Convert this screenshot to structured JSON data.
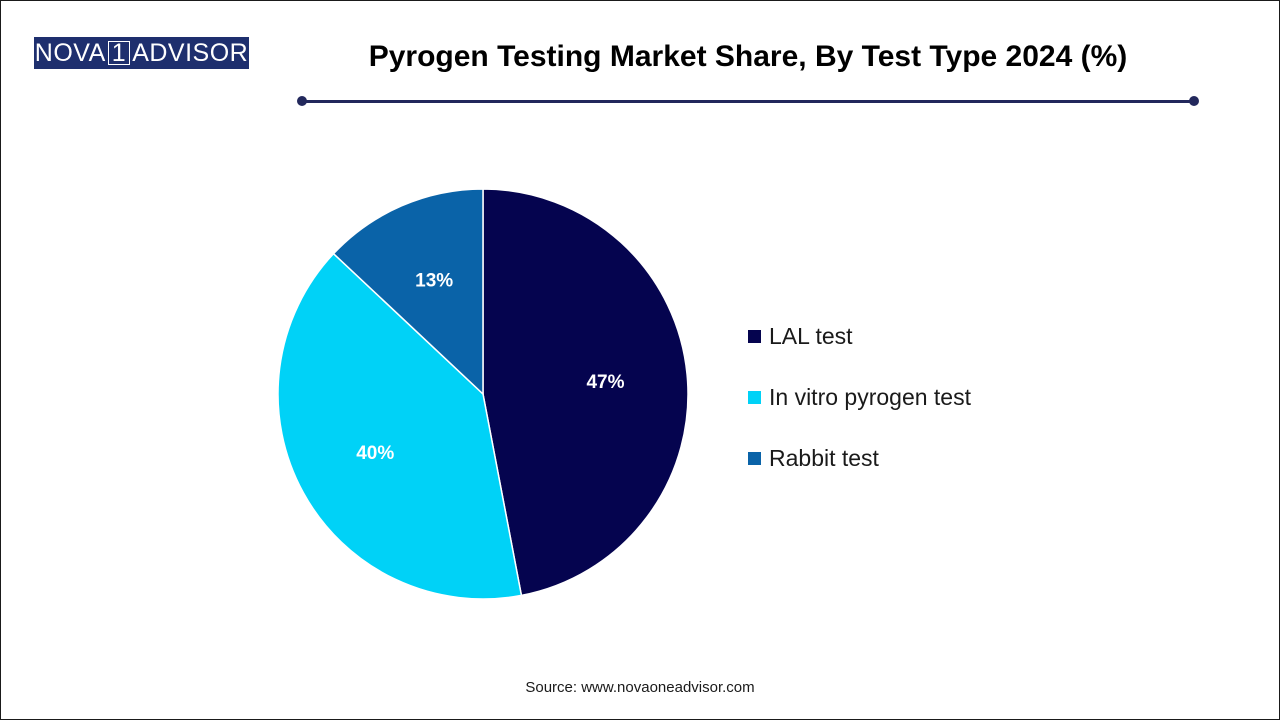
{
  "logo": {
    "text_left": "NOVA",
    "text_digit": "1",
    "text_right": "ADVISOR",
    "background": "#1e2f6e"
  },
  "chart_data": {
    "type": "pie",
    "title": "Pyrogen Testing Market Share, By Test Type 2024 (%)",
    "categories": [
      "LAL test",
      "In vitro pyrogen test",
      "Rabbit test"
    ],
    "values": [
      47,
      40,
      13
    ],
    "labels": [
      "47%",
      "40%",
      "13%"
    ],
    "colors": [
      "#05044f",
      "#00d2f7",
      "#0a63a8"
    ],
    "start_angle_deg": 0,
    "direction": "clockwise",
    "legend_position": "right"
  },
  "source": "Source: www.novaoneadvisor.com"
}
